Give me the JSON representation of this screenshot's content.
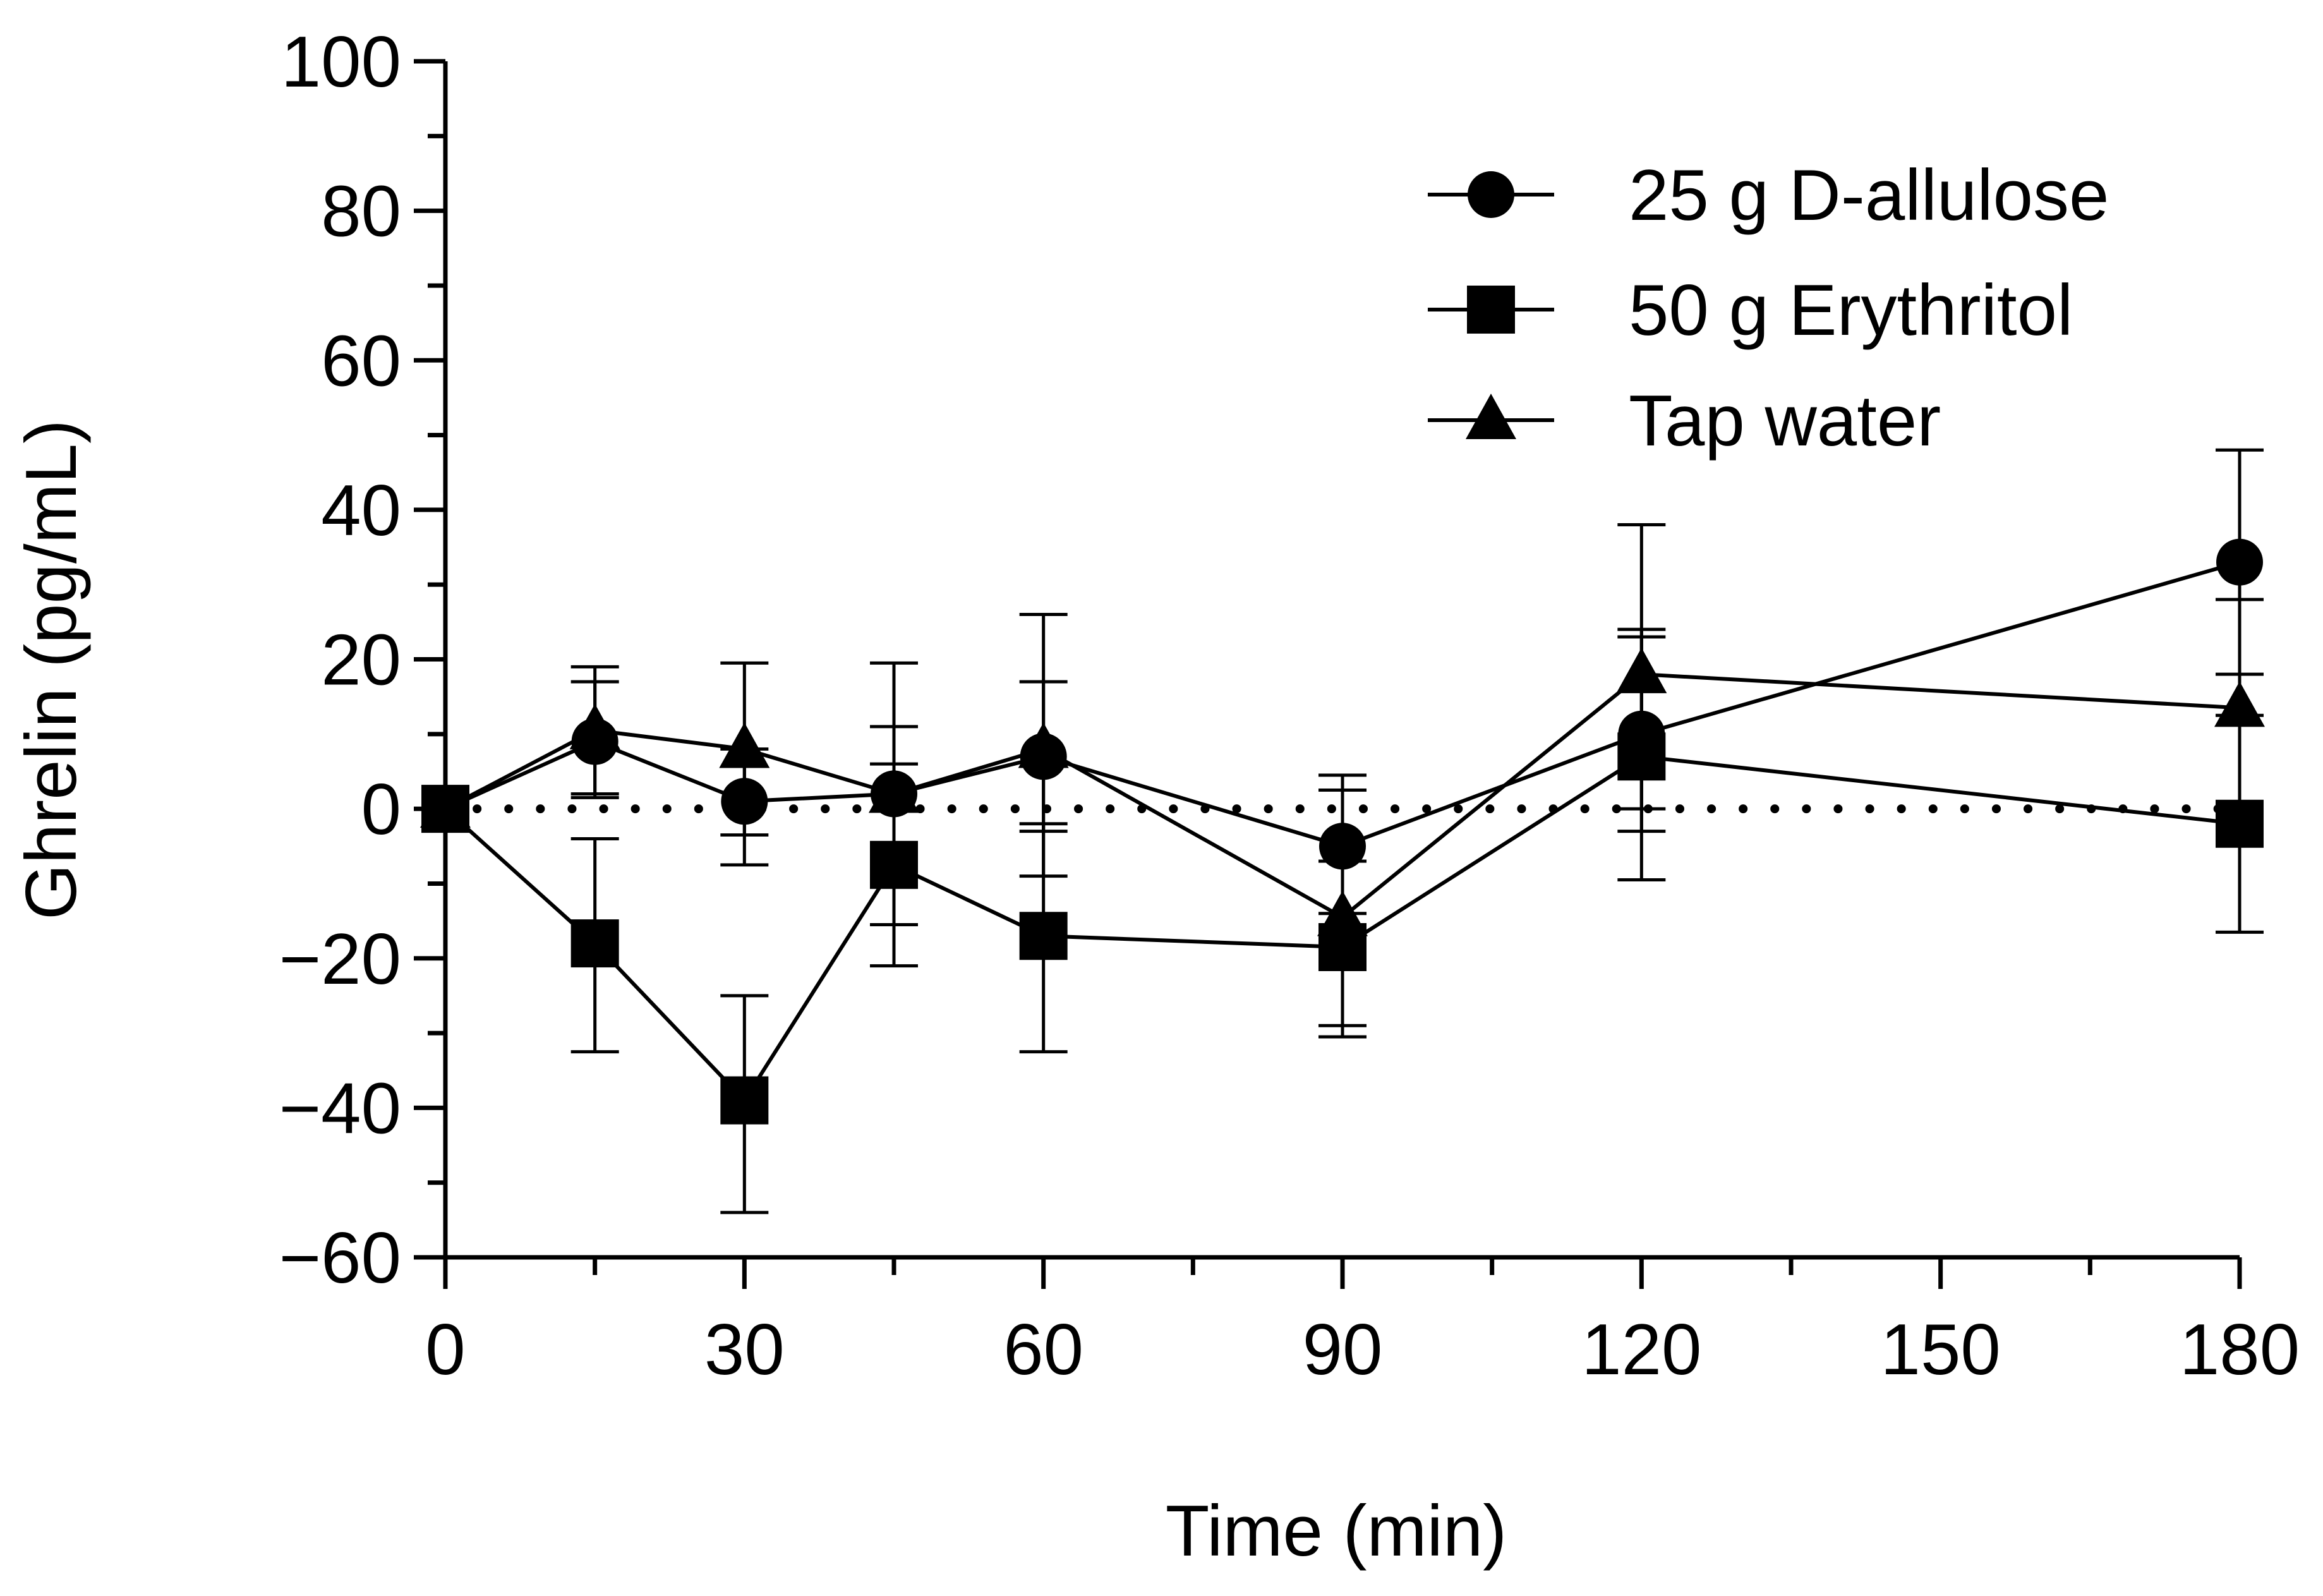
{
  "chart_data": {
    "type": "line",
    "title": "",
    "xlabel": "Time (min)",
    "ylabel": "Ghrelin (pg/mL)",
    "xlim": [
      0,
      180
    ],
    "ylim": [
      -60,
      100
    ],
    "x_ticks": [
      0,
      30,
      60,
      90,
      120,
      150,
      180
    ],
    "x_tick_labels": [
      "0",
      "30",
      "60",
      "90",
      "120",
      "150",
      "180"
    ],
    "x_minor_ticks": [
      15,
      45,
      75,
      105,
      135,
      165
    ],
    "y_ticks": [
      -60,
      -40,
      -20,
      0,
      20,
      40,
      60,
      80,
      100
    ],
    "y_tick_labels": [
      "−60",
      "−40",
      "−20",
      "0",
      "20",
      "40",
      "60",
      "80",
      "100"
    ],
    "y_minor_ticks": [
      -50,
      -30,
      -10,
      10,
      30,
      50,
      70,
      90
    ],
    "reference_line": {
      "y": 0,
      "style": "dotted"
    },
    "legend_position": "top-right",
    "x": [
      0,
      15,
      30,
      45,
      60,
      90,
      120,
      180
    ],
    "series": [
      {
        "name": "25 g D-allulose",
        "marker": "circle",
        "values": [
          0,
          9,
          1,
          2,
          7,
          -5,
          10,
          33
        ],
        "error_upper": [
          0,
          17,
          8,
          11,
          17,
          4.5,
          24,
          48
        ],
        "error_lower": [
          0,
          2,
          -7.5,
          -6.5,
          -3,
          -14,
          -3,
          18
        ]
      },
      {
        "name": "50 g Erythritol",
        "marker": "square",
        "values": [
          0,
          -18,
          -39,
          -7.5,
          -17,
          -18.5,
          7,
          -2
        ],
        "error_upper": [
          0,
          -4,
          -25,
          6,
          -2,
          -7,
          23,
          12.5
        ],
        "error_lower": [
          0,
          -32.5,
          -54,
          -21,
          -32.5,
          -30.5,
          -9.5,
          -16.5
        ]
      },
      {
        "name": "Tap water",
        "marker": "triangle",
        "values": [
          0,
          10.5,
          8,
          2,
          8,
          -14.5,
          18,
          13.5
        ],
        "error_upper": [
          0,
          19,
          19.5,
          19.5,
          26,
          2.5,
          38,
          28
        ],
        "error_lower": [
          0,
          1.5,
          -3.5,
          -15.5,
          -9,
          -29,
          0,
          0
        ]
      }
    ],
    "colors": {
      "series": "#000000",
      "axis": "#000000",
      "background": "#ffffff"
    }
  }
}
